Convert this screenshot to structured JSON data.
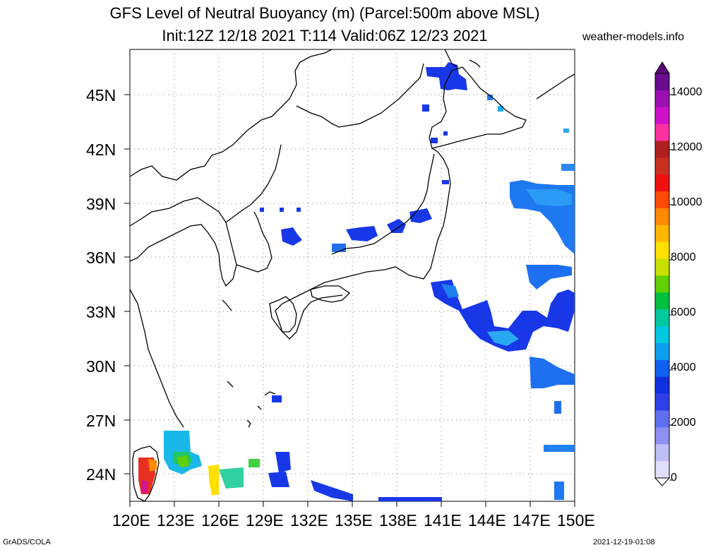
{
  "title": {
    "line1": "GFS Level of Neutral Buoyancy (m) (Parcel:500m above MSL)",
    "line2": "Init:12Z 12/18 2021 T:114 Valid:06Z 12/23 2021"
  },
  "site": "weather-models.info",
  "footer": {
    "left": "GrADS/COLA",
    "right": "2021-12-19-01:08"
  },
  "axes": {
    "lat_labels": [
      "45N",
      "42N",
      "39N",
      "36N",
      "33N",
      "30N",
      "27N",
      "24N"
    ],
    "lon_labels": [
      "120E",
      "123E",
      "126E",
      "129E",
      "132E",
      "135E",
      "138E",
      "141E",
      "144E",
      "147E",
      "150E"
    ]
  },
  "colorbar": {
    "labels": [
      "14000",
      "12000",
      "10000",
      "8000",
      "6000",
      "4000",
      "2000",
      "0"
    ],
    "colors": [
      "#6a0a8c",
      "#9a10b0",
      "#d010c8",
      "#ff30a0",
      "#b02020",
      "#c83020",
      "#f01010",
      "#ff4a00",
      "#ff8a00",
      "#ffb800",
      "#ffe000",
      "#c8e000",
      "#60d000",
      "#00c040",
      "#00c8a0",
      "#00c8e0",
      "#10a0f0",
      "#1060f0",
      "#1030e0",
      "#3040e8",
      "#6070f0",
      "#9090f0",
      "#c0c0f8",
      "#e0e0fc"
    ]
  }
}
